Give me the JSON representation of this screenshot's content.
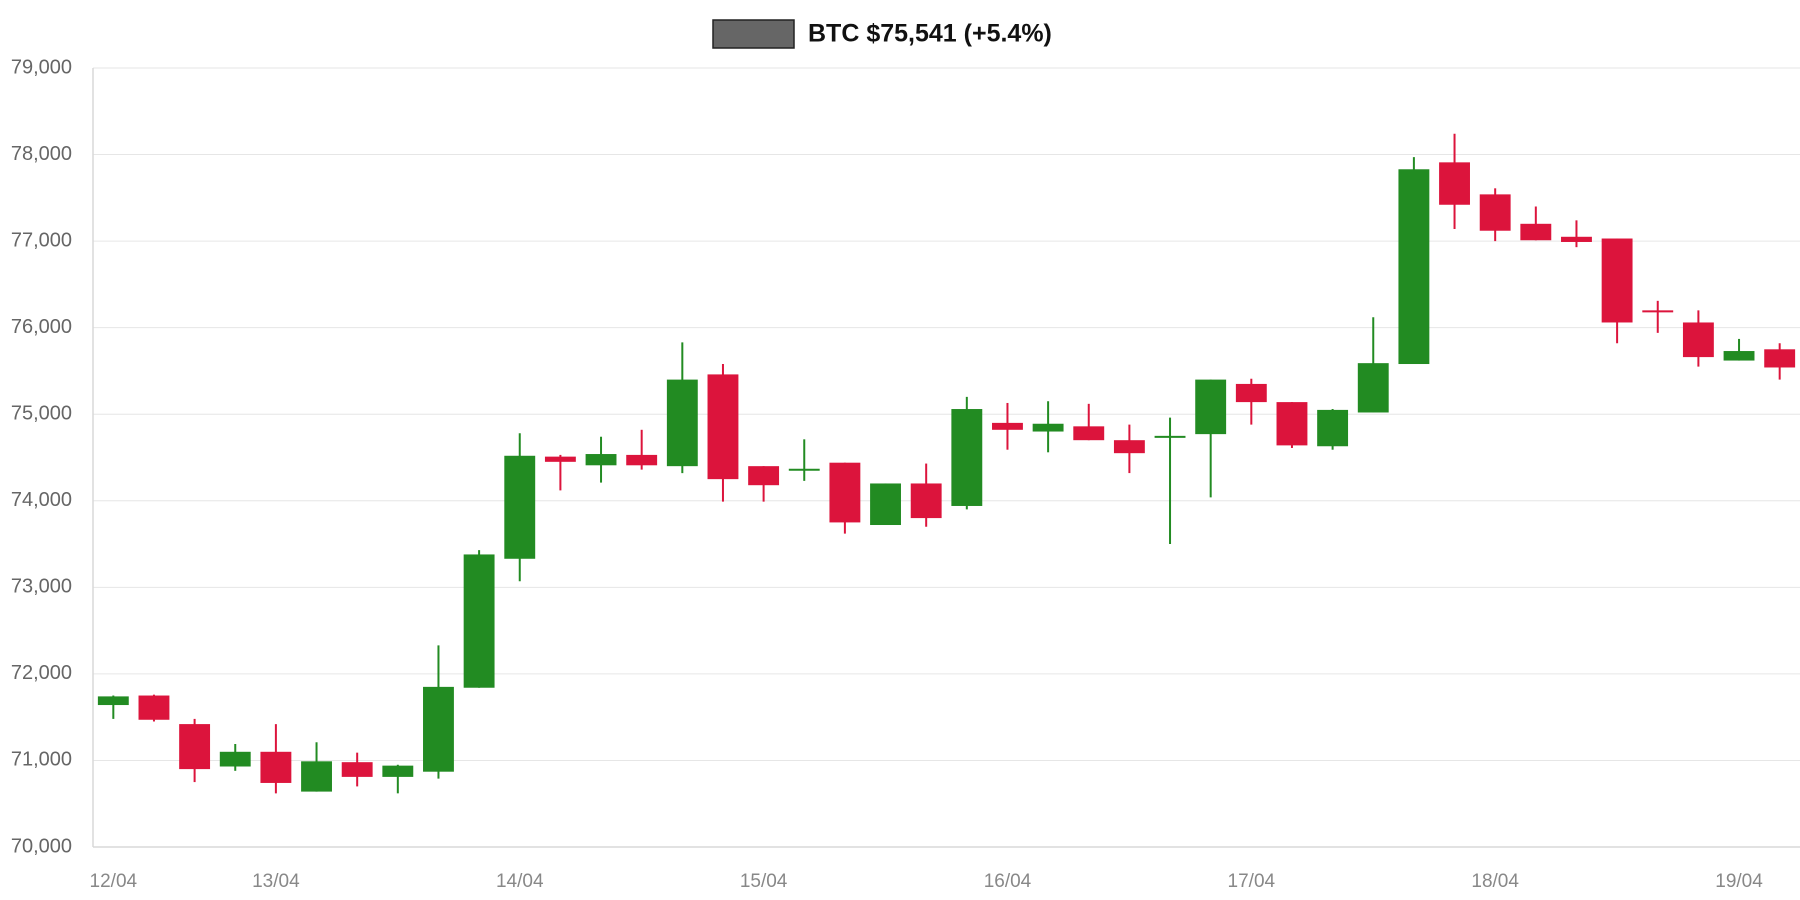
{
  "chart_data": {
    "type": "candlestick",
    "categories": [
      "12/04",
      null,
      null,
      null,
      "13/04",
      null,
      null,
      null,
      null,
      null,
      "14/04",
      null,
      null,
      null,
      null,
      null,
      "15/04",
      null,
      null,
      null,
      null,
      null,
      "16/04",
      null,
      null,
      null,
      null,
      null,
      "17/04",
      null,
      null,
      null,
      null,
      null,
      "18/04",
      null,
      null,
      null,
      null,
      null,
      "19/04",
      null
    ],
    "series": [
      {
        "name": "BTC $75,541 (+5.4%)",
        "color": "#666666",
        "up_color": "#228b22",
        "down_color": "#dc143c",
        "open": [
          71640,
          71750,
          71420,
          70930,
          71100,
          70640,
          70980,
          70810,
          70870,
          71840,
          73330,
          74510,
          74410,
          74530,
          74400,
          75460,
          74400,
          74350,
          74440,
          73720,
          74200,
          73940,
          74900,
          74800,
          74860,
          74700,
          74730,
          74770,
          75350,
          75140,
          74630,
          75020,
          75580,
          77910,
          77540,
          77200,
          77050,
          77030,
          76200,
          76060,
          75620,
          75750
        ],
        "high": [
          71750,
          71760,
          71480,
          71190,
          71420,
          71210,
          71090,
          70950,
          72330,
          73430,
          74780,
          74530,
          74740,
          74820,
          75830,
          75580,
          74400,
          74710,
          74440,
          74200,
          74430,
          75200,
          75130,
          75150,
          75120,
          74880,
          74960,
          75400,
          75410,
          75140,
          75060,
          76120,
          77970,
          78240,
          77610,
          77400,
          77240,
          77030,
          76310,
          76200,
          75870,
          75820
        ],
        "low": [
          71480,
          71450,
          70750,
          70880,
          70620,
          70640,
          70700,
          70620,
          70790,
          71840,
          73070,
          74120,
          74210,
          74360,
          74320,
          73990,
          73990,
          74230,
          73620,
          73720,
          73700,
          73900,
          74590,
          74560,
          74700,
          74320,
          73500,
          74040,
          74880,
          74610,
          74590,
          75020,
          75580,
          77140,
          77000,
          77010,
          76930,
          75820,
          75940,
          75550,
          75620,
          75400
        ],
        "close": [
          71740,
          71470,
          70900,
          71100,
          70740,
          70990,
          70810,
          70940,
          71850,
          73380,
          74520,
          74450,
          74540,
          74410,
          75400,
          74250,
          74180,
          74370,
          73750,
          74200,
          73800,
          75060,
          74820,
          74890,
          74700,
          74550,
          74750,
          75400,
          75140,
          74640,
          75050,
          75590,
          77830,
          77420,
          77120,
          77010,
          76990,
          76060,
          76180,
          75660,
          75730,
          75540
        ]
      }
    ],
    "ylim": [
      70000,
      79000
    ],
    "yticks": [
      {
        "value": 70000,
        "label": "70,000"
      },
      {
        "value": 71000,
        "label": "71,000"
      },
      {
        "value": 72000,
        "label": "72,000"
      },
      {
        "value": 73000,
        "label": "73,000"
      },
      {
        "value": 74000,
        "label": "74,000"
      },
      {
        "value": 75000,
        "label": "75,000"
      },
      {
        "value": 76000,
        "label": "76,000"
      },
      {
        "value": 77000,
        "label": "77,000"
      },
      {
        "value": 78000,
        "label": "78,000"
      },
      {
        "value": 79000,
        "label": "79,000"
      }
    ],
    "grid": true
  }
}
